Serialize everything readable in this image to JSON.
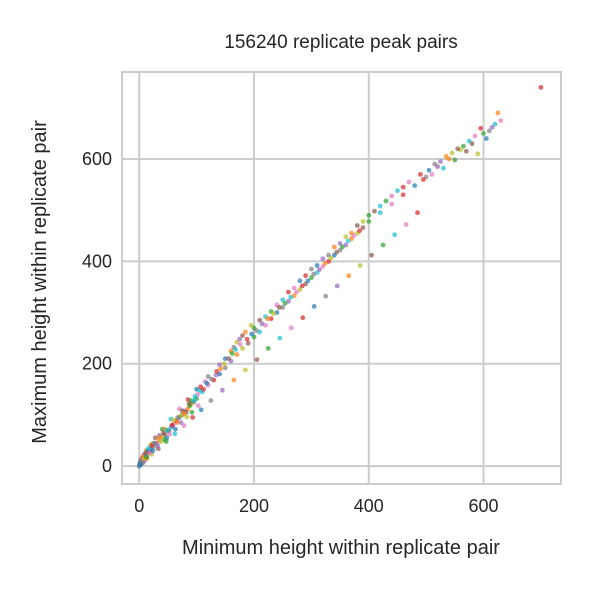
{
  "chart_data": {
    "type": "scatter",
    "title": "156240 replicate peak pairs",
    "xlabel": "Minimum height within replicate pair",
    "ylabel": "Maximum height within replicate pair",
    "xlim": [
      -30,
      735
    ],
    "ylim": [
      -35,
      770
    ],
    "xticks": [
      0,
      200,
      400,
      600
    ],
    "yticks": [
      0,
      200,
      400,
      600
    ],
    "grid": true,
    "point_count": 156240,
    "palette": [
      "#1f77b4",
      "#ff7f0e",
      "#2ca02c",
      "#d62728",
      "#9467bd",
      "#8c564b",
      "#e377c2",
      "#7f7f7f",
      "#bcbd22",
      "#17becf"
    ],
    "points": [
      [
        0,
        0
      ],
      [
        1,
        2
      ],
      [
        2,
        4
      ],
      [
        3,
        5
      ],
      [
        5,
        8
      ],
      [
        7,
        12
      ],
      [
        10,
        16
      ],
      [
        12,
        20
      ],
      [
        15,
        24
      ],
      [
        18,
        28
      ],
      [
        20,
        33
      ],
      [
        25,
        38
      ],
      [
        30,
        45
      ],
      [
        35,
        50
      ],
      [
        40,
        58
      ],
      [
        45,
        62
      ],
      [
        50,
        70
      ],
      [
        55,
        75
      ],
      [
        60,
        82
      ],
      [
        65,
        88
      ],
      [
        70,
        95
      ],
      [
        75,
        100
      ],
      [
        80,
        108
      ],
      [
        85,
        112
      ],
      [
        90,
        120
      ],
      [
        95,
        125
      ],
      [
        100,
        132
      ],
      [
        110,
        145
      ],
      [
        120,
        158
      ],
      [
        130,
        168
      ],
      [
        140,
        180
      ],
      [
        150,
        192
      ],
      [
        160,
        205
      ],
      [
        170,
        218
      ],
      [
        180,
        230
      ],
      [
        190,
        240
      ],
      [
        200,
        252
      ],
      [
        210,
        262
      ],
      [
        220,
        275
      ],
      [
        230,
        288
      ],
      [
        240,
        300
      ],
      [
        250,
        310
      ],
      [
        260,
        322
      ],
      [
        270,
        333
      ],
      [
        280,
        345
      ],
      [
        290,
        356
      ],
      [
        300,
        368
      ],
      [
        310,
        378
      ],
      [
        320,
        390
      ],
      [
        330,
        400
      ],
      [
        340,
        412
      ],
      [
        350,
        422
      ],
      [
        360,
        432
      ],
      [
        370,
        444
      ],
      [
        380,
        455
      ],
      [
        390,
        466
      ],
      [
        400,
        478
      ],
      [
        420,
        495
      ],
      [
        440,
        512
      ],
      [
        460,
        530
      ],
      [
        480,
        548
      ],
      [
        500,
        565
      ],
      [
        520,
        585
      ],
      [
        540,
        600
      ],
      [
        560,
        618
      ],
      [
        580,
        630
      ],
      [
        600,
        650
      ],
      [
        620,
        668
      ],
      [
        630,
        675
      ],
      [
        700,
        740
      ],
      [
        2,
        8
      ],
      [
        4,
        14
      ],
      [
        8,
        22
      ],
      [
        12,
        30
      ],
      [
        20,
        42
      ],
      [
        28,
        55
      ],
      [
        40,
        72
      ],
      [
        55,
        92
      ],
      [
        70,
        112
      ],
      [
        85,
        130
      ],
      [
        100,
        150
      ],
      [
        120,
        175
      ],
      [
        140,
        198
      ],
      [
        160,
        225
      ],
      [
        170,
        242
      ],
      [
        180,
        255
      ],
      [
        200,
        270
      ],
      [
        220,
        292
      ],
      [
        240,
        315
      ],
      [
        260,
        340
      ],
      [
        280,
        362
      ],
      [
        300,
        385
      ],
      [
        320,
        405
      ],
      [
        340,
        428
      ],
      [
        360,
        448
      ],
      [
        380,
        470
      ],
      [
        400,
        490
      ],
      [
        420,
        508
      ],
      [
        440,
        528
      ],
      [
        460,
        545
      ],
      [
        3,
        3
      ],
      [
        6,
        6
      ],
      [
        9,
        10
      ],
      [
        14,
        15
      ],
      [
        22,
        23
      ],
      [
        33,
        34
      ],
      [
        47,
        48
      ],
      [
        62,
        63
      ],
      [
        78,
        79
      ],
      [
        93,
        95
      ],
      [
        108,
        110
      ],
      [
        125,
        128
      ],
      [
        145,
        148
      ],
      [
        165,
        168
      ],
      [
        185,
        188
      ],
      [
        205,
        208
      ],
      [
        225,
        230
      ],
      [
        245,
        250
      ],
      [
        265,
        270
      ],
      [
        285,
        290
      ],
      [
        305,
        312
      ],
      [
        325,
        332
      ],
      [
        345,
        352
      ],
      [
        365,
        372
      ],
      [
        385,
        392
      ],
      [
        405,
        412
      ],
      [
        425,
        432
      ],
      [
        445,
        452
      ],
      [
        465,
        472
      ],
      [
        485,
        495
      ],
      [
        15,
        30
      ],
      [
        25,
        45
      ],
      [
        35,
        60
      ],
      [
        45,
        72
      ],
      [
        60,
        90
      ],
      [
        75,
        108
      ],
      [
        90,
        128
      ],
      [
        105,
        148
      ],
      [
        115,
        165
      ],
      [
        135,
        185
      ],
      [
        150,
        210
      ],
      [
        165,
        232
      ],
      [
        175,
        248
      ],
      [
        185,
        262
      ],
      [
        195,
        275
      ],
      [
        210,
        285
      ],
      [
        230,
        302
      ],
      [
        250,
        325
      ],
      [
        270,
        348
      ],
      [
        290,
        372
      ],
      [
        310,
        392
      ],
      [
        330,
        412
      ],
      [
        350,
        435
      ],
      [
        370,
        455
      ],
      [
        390,
        478
      ],
      [
        410,
        498
      ],
      [
        430,
        518
      ],
      [
        450,
        538
      ],
      [
        470,
        555
      ],
      [
        490,
        570
      ],
      [
        505,
        578
      ],
      [
        515,
        590
      ],
      [
        525,
        595
      ],
      [
        535,
        605
      ],
      [
        545,
        612
      ],
      [
        555,
        620
      ],
      [
        565,
        625
      ],
      [
        575,
        635
      ],
      [
        585,
        645
      ],
      [
        595,
        660
      ],
      [
        605,
        640
      ],
      [
        610,
        655
      ],
      [
        615,
        662
      ],
      [
        625,
        690
      ],
      [
        590,
        610
      ],
      [
        570,
        615
      ],
      [
        550,
        598
      ],
      [
        530,
        582
      ],
      [
        510,
        570
      ],
      [
        495,
        560
      ],
      [
        48,
        55
      ],
      [
        52,
        68
      ],
      [
        58,
        78
      ],
      [
        66,
        85
      ],
      [
        72,
        98
      ],
      [
        82,
        105
      ],
      [
        88,
        118
      ],
      [
        96,
        128
      ],
      [
        102,
        140
      ],
      [
        112,
        150
      ],
      [
        118,
        162
      ],
      [
        126,
        170
      ],
      [
        134,
        178
      ],
      [
        142,
        190
      ],
      [
        148,
        200
      ],
      [
        156,
        210
      ],
      [
        162,
        220
      ],
      [
        168,
        228
      ],
      [
        176,
        238
      ],
      [
        188,
        248
      ],
      [
        196,
        258
      ],
      [
        204,
        265
      ],
      [
        214,
        278
      ],
      [
        224,
        288
      ],
      [
        234,
        298
      ],
      [
        244,
        310
      ],
      [
        254,
        318
      ],
      [
        264,
        330
      ],
      [
        274,
        340
      ],
      [
        284,
        352
      ],
      [
        294,
        362
      ],
      [
        304,
        375
      ],
      [
        314,
        384
      ],
      [
        324,
        396
      ],
      [
        334,
        406
      ],
      [
        344,
        418
      ],
      [
        354,
        428
      ],
      [
        364,
        440
      ],
      [
        374,
        450
      ],
      [
        384,
        460
      ],
      [
        1,
        5
      ],
      [
        2,
        10
      ],
      [
        5,
        15
      ],
      [
        6,
        18
      ],
      [
        8,
        14
      ],
      [
        11,
        25
      ],
      [
        13,
        18
      ],
      [
        16,
        35
      ],
      [
        19,
        26
      ],
      [
        22,
        40
      ],
      [
        24,
        30
      ],
      [
        27,
        44
      ],
      [
        32,
        40
      ],
      [
        36,
        56
      ],
      [
        38,
        48
      ],
      [
        42,
        65
      ],
      [
        44,
        52
      ],
      [
        48,
        70
      ],
      [
        53,
        62
      ],
      [
        57,
        80
      ],
      [
        63,
        72
      ],
      [
        67,
        95
      ],
      [
        73,
        85
      ],
      [
        78,
        103
      ],
      [
        83,
        96
      ],
      [
        87,
        122
      ],
      [
        92,
        105
      ],
      [
        97,
        136
      ],
      [
        103,
        118
      ],
      [
        107,
        155
      ]
    ]
  }
}
